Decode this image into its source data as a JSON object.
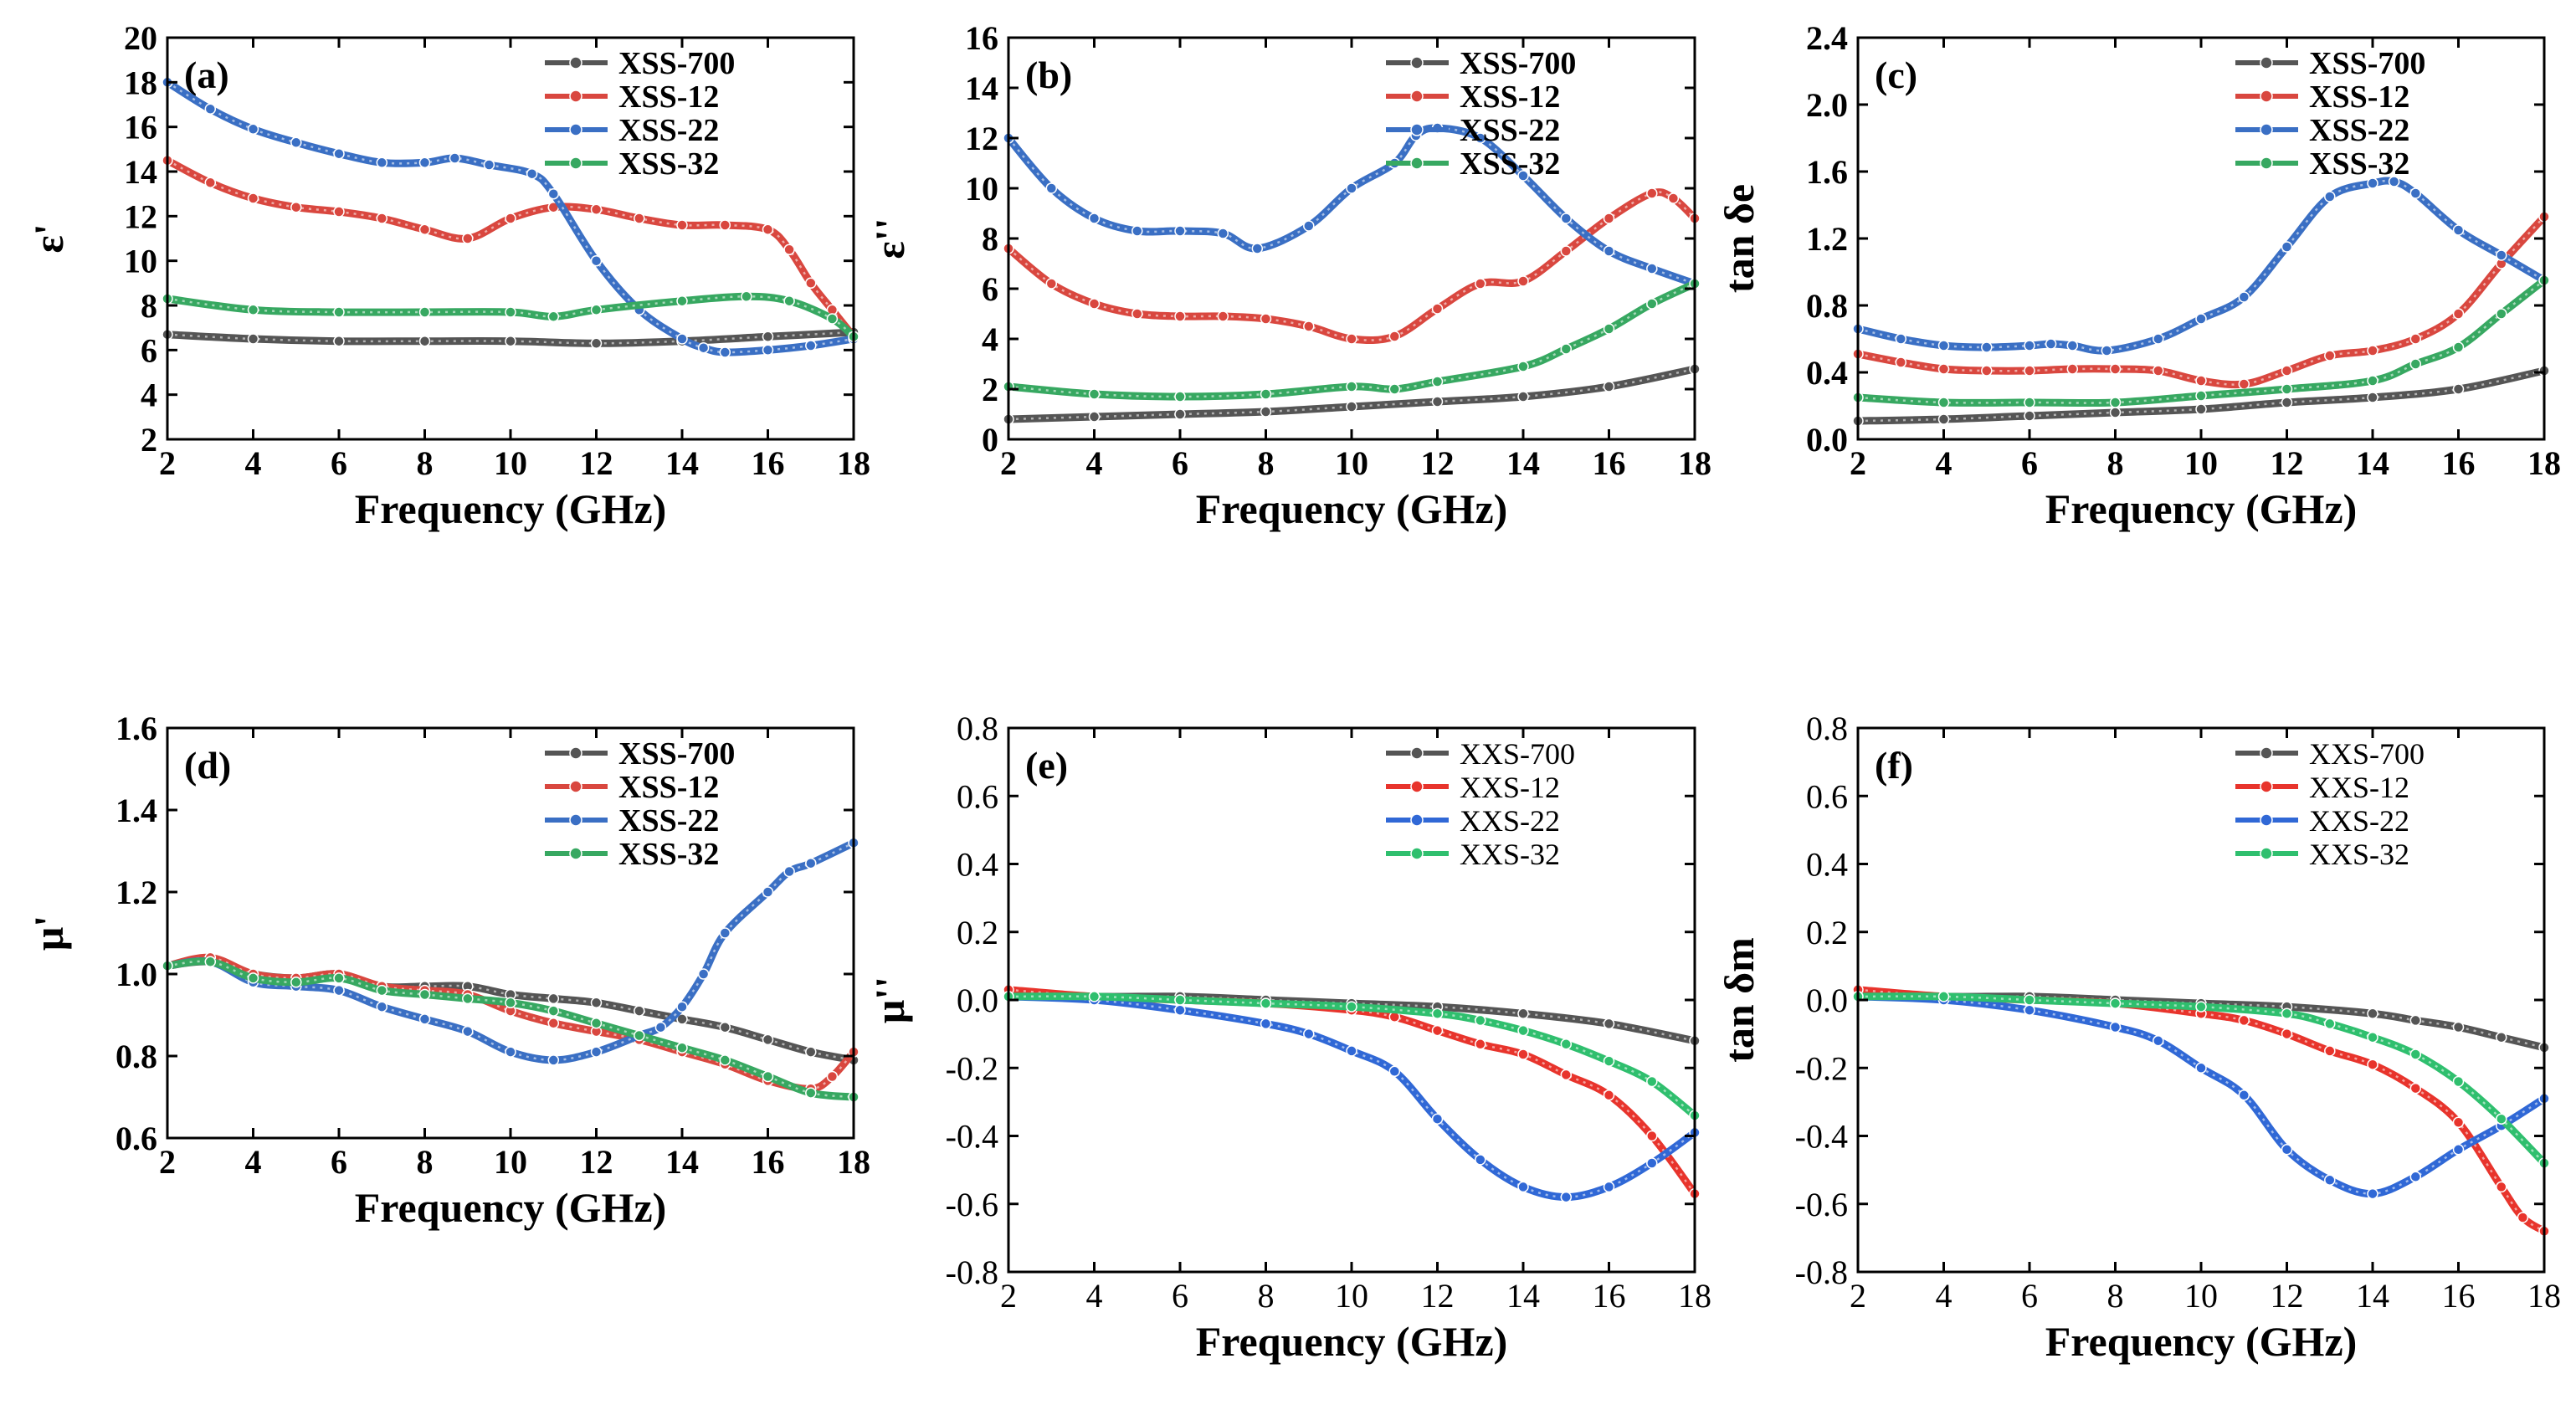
{
  "colors": {
    "XSS-700": "#555555",
    "XSS-12": "#d9473f",
    "XSS-22": "#3a6fc4",
    "XSS-32": "#37a861",
    "XXS-700": "#555555",
    "XXS-12": "#e8342c",
    "XXS-22": "#3068d6",
    "XXS-32": "#2fbf6e"
  },
  "chart_data": [
    {
      "panel": "(a)",
      "type": "line",
      "xlabel": "Frequency (GHz)",
      "ylabel": "ε'",
      "xlim": [
        2,
        18
      ],
      "ylim": [
        2,
        20
      ],
      "xticks": [
        "2",
        "4",
        "6",
        "8",
        "10",
        "12",
        "14",
        "16",
        "18"
      ],
      "yticks": [
        "2",
        "4",
        "6",
        "8",
        "10",
        "12",
        "14",
        "16",
        "18",
        "20"
      ],
      "legend": "top-right",
      "series": [
        {
          "name": "XSS-700",
          "x": [
            2,
            4,
            6,
            8,
            10,
            12,
            14,
            16,
            18
          ],
          "y": [
            6.7,
            6.5,
            6.4,
            6.4,
            6.4,
            6.3,
            6.4,
            6.6,
            6.8
          ]
        },
        {
          "name": "XSS-12",
          "x": [
            2,
            3,
            4,
            5,
            6,
            7,
            8,
            9,
            10,
            11,
            12,
            13,
            14,
            15,
            16,
            16.5,
            17,
            17.5,
            18
          ],
          "y": [
            14.5,
            13.5,
            12.8,
            12.4,
            12.2,
            11.9,
            11.4,
            11.0,
            11.9,
            12.4,
            12.3,
            11.9,
            11.6,
            11.6,
            11.4,
            10.5,
            9.0,
            7.8,
            6.6
          ]
        },
        {
          "name": "XSS-22",
          "x": [
            2,
            3,
            4,
            5,
            6,
            7,
            8,
            8.7,
            9.5,
            10.5,
            11,
            12,
            13,
            14,
            14.5,
            15,
            16,
            17,
            18
          ],
          "y": [
            18.0,
            16.8,
            15.9,
            15.3,
            14.8,
            14.4,
            14.4,
            14.6,
            14.3,
            13.9,
            13.0,
            10.0,
            7.8,
            6.5,
            6.1,
            5.9,
            6.0,
            6.2,
            6.5
          ]
        },
        {
          "name": "XSS-32",
          "x": [
            2,
            4,
            6,
            8,
            10,
            11,
            12,
            14,
            15.5,
            16.5,
            17.5,
            18
          ],
          "y": [
            8.3,
            7.8,
            7.7,
            7.7,
            7.7,
            7.5,
            7.8,
            8.2,
            8.4,
            8.2,
            7.4,
            6.6
          ]
        }
      ]
    },
    {
      "panel": "(b)",
      "type": "line",
      "xlabel": "Frequency (GHz)",
      "ylabel": "ε''",
      "xlim": [
        2,
        18
      ],
      "ylim": [
        0,
        16
      ],
      "xticks": [
        "2",
        "4",
        "6",
        "8",
        "10",
        "12",
        "14",
        "16",
        "18"
      ],
      "yticks": [
        "0",
        "2",
        "4",
        "6",
        "8",
        "10",
        "12",
        "14",
        "16"
      ],
      "legend": "top-right",
      "series": [
        {
          "name": "XSS-700",
          "x": [
            2,
            4,
            6,
            8,
            10,
            12,
            14,
            16,
            18
          ],
          "y": [
            0.8,
            0.9,
            1.0,
            1.1,
            1.3,
            1.5,
            1.7,
            2.1,
            2.8
          ]
        },
        {
          "name": "XSS-12",
          "x": [
            2,
            3,
            4,
            5,
            6,
            7,
            8,
            9,
            10,
            11,
            12,
            13,
            14,
            15,
            16,
            17,
            17.5,
            18
          ],
          "y": [
            7.6,
            6.2,
            5.4,
            5.0,
            4.9,
            4.9,
            4.8,
            4.5,
            4.0,
            4.1,
            5.2,
            6.2,
            6.3,
            7.5,
            8.8,
            9.8,
            9.6,
            8.8
          ]
        },
        {
          "name": "XSS-22",
          "x": [
            2,
            3,
            4,
            5,
            6,
            7,
            7.8,
            9,
            10,
            11,
            11.5,
            12,
            13,
            14,
            15,
            16,
            17,
            18
          ],
          "y": [
            12.0,
            10.0,
            8.8,
            8.3,
            8.3,
            8.2,
            7.6,
            8.5,
            10.0,
            11.0,
            12.1,
            12.4,
            12.0,
            10.5,
            8.8,
            7.5,
            6.8,
            6.2
          ]
        },
        {
          "name": "XSS-32",
          "x": [
            2,
            4,
            6,
            8,
            10,
            11,
            12,
            14,
            15,
            16,
            17,
            18
          ],
          "y": [
            2.1,
            1.8,
            1.7,
            1.8,
            2.1,
            2.0,
            2.3,
            2.9,
            3.6,
            4.4,
            5.4,
            6.2
          ]
        }
      ]
    },
    {
      "panel": "(c)",
      "type": "line",
      "xlabel": "Frequency (GHz)",
      "ylabel": "tan δe",
      "xlim": [
        2,
        18
      ],
      "ylim": [
        0.0,
        2.4
      ],
      "xticks": [
        "2",
        "4",
        "6",
        "8",
        "10",
        "12",
        "14",
        "16",
        "18"
      ],
      "yticks": [
        "0.0",
        "0.4",
        "0.8",
        "1.2",
        "1.6",
        "2.0",
        "2.4"
      ],
      "legend": "top-right",
      "series": [
        {
          "name": "XSS-700",
          "x": [
            2,
            4,
            6,
            8,
            10,
            12,
            14,
            16,
            18
          ],
          "y": [
            0.11,
            0.12,
            0.14,
            0.16,
            0.18,
            0.22,
            0.25,
            0.3,
            0.41
          ]
        },
        {
          "name": "XSS-12",
          "x": [
            2,
            3,
            4,
            5,
            6,
            7,
            8,
            9,
            10,
            11,
            12,
            13,
            14,
            15,
            16,
            17,
            18
          ],
          "y": [
            0.51,
            0.46,
            0.42,
            0.41,
            0.41,
            0.42,
            0.42,
            0.41,
            0.35,
            0.33,
            0.41,
            0.5,
            0.53,
            0.6,
            0.75,
            1.05,
            1.33
          ]
        },
        {
          "name": "XSS-22",
          "x": [
            2,
            3,
            4,
            5,
            6,
            6.5,
            7,
            7.8,
            9,
            10,
            11,
            12,
            13,
            14,
            14.5,
            15,
            16,
            17,
            18
          ],
          "y": [
            0.66,
            0.6,
            0.56,
            0.55,
            0.56,
            0.57,
            0.56,
            0.53,
            0.6,
            0.72,
            0.85,
            1.15,
            1.45,
            1.53,
            1.54,
            1.47,
            1.25,
            1.1,
            0.95
          ]
        },
        {
          "name": "XSS-32",
          "x": [
            2,
            4,
            6,
            8,
            10,
            12,
            14,
            15,
            16,
            17,
            18
          ],
          "y": [
            0.25,
            0.22,
            0.22,
            0.22,
            0.26,
            0.3,
            0.35,
            0.45,
            0.55,
            0.75,
            0.95
          ]
        }
      ]
    },
    {
      "panel": "(d)",
      "type": "line",
      "xlabel": "Frequency (GHz)",
      "ylabel": "μ'",
      "xlim": [
        2,
        18
      ],
      "ylim": [
        0.6,
        1.6
      ],
      "xticks": [
        "2",
        "4",
        "6",
        "8",
        "10",
        "12",
        "14",
        "16",
        "18"
      ],
      "yticks": [
        "0.6",
        "0.8",
        "1.0",
        "1.2",
        "1.4",
        "1.6"
      ],
      "legend": "top-right",
      "series": [
        {
          "name": "XSS-700",
          "x": [
            2,
            3,
            4,
            5,
            6,
            7,
            8,
            9,
            10,
            11,
            12,
            13,
            14,
            15,
            16,
            17,
            18
          ],
          "y": [
            1.02,
            1.03,
            1.0,
            0.99,
            1.0,
            0.97,
            0.97,
            0.97,
            0.95,
            0.94,
            0.93,
            0.91,
            0.89,
            0.87,
            0.84,
            0.81,
            0.79
          ]
        },
        {
          "name": "XSS-12",
          "x": [
            2,
            3,
            4,
            5,
            6,
            7,
            8,
            9,
            10,
            11,
            12,
            13,
            14,
            15,
            16,
            17,
            17.5,
            18
          ],
          "y": [
            1.02,
            1.04,
            1.0,
            0.99,
            1.0,
            0.97,
            0.96,
            0.95,
            0.91,
            0.88,
            0.86,
            0.84,
            0.81,
            0.78,
            0.74,
            0.72,
            0.75,
            0.81
          ]
        },
        {
          "name": "XSS-22",
          "x": [
            2,
            3,
            4,
            5,
            6,
            7,
            8,
            9,
            10,
            11,
            12,
            13,
            13.5,
            14,
            14.5,
            15,
            16,
            16.5,
            17,
            18
          ],
          "y": [
            1.02,
            1.03,
            0.98,
            0.97,
            0.96,
            0.92,
            0.89,
            0.86,
            0.81,
            0.79,
            0.81,
            0.85,
            0.87,
            0.92,
            1.0,
            1.1,
            1.2,
            1.25,
            1.27,
            1.32
          ]
        },
        {
          "name": "XSS-32",
          "x": [
            2,
            3,
            4,
            5,
            6,
            7,
            8,
            9,
            10,
            11,
            12,
            13,
            14,
            15,
            16,
            17,
            18
          ],
          "y": [
            1.02,
            1.03,
            0.99,
            0.98,
            0.99,
            0.96,
            0.95,
            0.94,
            0.93,
            0.91,
            0.88,
            0.85,
            0.82,
            0.79,
            0.75,
            0.71,
            0.7
          ]
        }
      ]
    },
    {
      "panel": "(e)",
      "type": "line",
      "xlabel": "Frequency (GHz)",
      "ylabel": "μ''",
      "xlim": [
        2,
        18
      ],
      "ylim": [
        -0.8,
        0.8
      ],
      "xticks": [
        "2",
        "4",
        "6",
        "8",
        "10",
        "12",
        "14",
        "16",
        "18"
      ],
      "yticks": [
        "-0.8",
        "-0.6",
        "-0.4",
        "-0.2",
        "0.0",
        "0.2",
        "0.4",
        "0.6",
        "0.8"
      ],
      "legend": "top-right",
      "series": [
        {
          "name": "XXS-700",
          "x": [
            2,
            4,
            6,
            8,
            10,
            12,
            14,
            16,
            18
          ],
          "y": [
            0.02,
            0.01,
            0.01,
            0.0,
            -0.01,
            -0.02,
            -0.04,
            -0.07,
            -0.12
          ]
        },
        {
          "name": "XXS-12",
          "x": [
            2,
            4,
            6,
            8,
            10,
            11,
            12,
            13,
            14,
            15,
            16,
            17,
            18
          ],
          "y": [
            0.03,
            0.01,
            0.0,
            -0.01,
            -0.03,
            -0.05,
            -0.09,
            -0.13,
            -0.16,
            -0.22,
            -0.28,
            -0.4,
            -0.57
          ]
        },
        {
          "name": "XXS-22",
          "x": [
            2,
            4,
            6,
            8,
            9,
            10,
            11,
            12,
            13,
            14,
            15,
            16,
            17,
            18
          ],
          "y": [
            0.01,
            0.0,
            -0.03,
            -0.07,
            -0.1,
            -0.15,
            -0.21,
            -0.35,
            -0.47,
            -0.55,
            -0.58,
            -0.55,
            -0.48,
            -0.39
          ]
        },
        {
          "name": "XXS-32",
          "x": [
            2,
            4,
            6,
            8,
            10,
            12,
            13,
            14,
            15,
            16,
            17,
            18
          ],
          "y": [
            0.01,
            0.01,
            0.0,
            -0.01,
            -0.02,
            -0.04,
            -0.06,
            -0.09,
            -0.13,
            -0.18,
            -0.24,
            -0.34
          ]
        }
      ]
    },
    {
      "panel": "(f)",
      "type": "line",
      "xlabel": "Frequency (GHz)",
      "ylabel": "tan δm",
      "xlim": [
        2,
        18
      ],
      "ylim": [
        -0.8,
        0.8
      ],
      "xticks": [
        "2",
        "4",
        "6",
        "8",
        "10",
        "12",
        "14",
        "16",
        "18"
      ],
      "yticks": [
        "-0.8",
        "-0.6",
        "-0.4",
        "-0.2",
        "0.0",
        "0.2",
        "0.4",
        "0.6",
        "0.8"
      ],
      "legend": "top-right",
      "series": [
        {
          "name": "XXS-700",
          "x": [
            2,
            4,
            6,
            8,
            10,
            12,
            14,
            15,
            16,
            17,
            18
          ],
          "y": [
            0.02,
            0.01,
            0.01,
            0.0,
            -0.01,
            -0.02,
            -0.04,
            -0.06,
            -0.08,
            -0.11,
            -0.14
          ]
        },
        {
          "name": "XXS-12",
          "x": [
            2,
            4,
            6,
            8,
            10,
            11,
            12,
            13,
            14,
            15,
            16,
            17,
            17.5,
            18
          ],
          "y": [
            0.03,
            0.01,
            0.0,
            -0.01,
            -0.04,
            -0.06,
            -0.1,
            -0.15,
            -0.19,
            -0.26,
            -0.36,
            -0.55,
            -0.64,
            -0.68
          ]
        },
        {
          "name": "XXS-22",
          "x": [
            2,
            4,
            6,
            8,
            9,
            10,
            11,
            12,
            13,
            14,
            15,
            16,
            17,
            18
          ],
          "y": [
            0.01,
            0.0,
            -0.03,
            -0.08,
            -0.12,
            -0.2,
            -0.28,
            -0.44,
            -0.53,
            -0.57,
            -0.52,
            -0.44,
            -0.37,
            -0.29
          ]
        },
        {
          "name": "XXS-32",
          "x": [
            2,
            4,
            6,
            8,
            10,
            12,
            13,
            14,
            15,
            16,
            17,
            18
          ],
          "y": [
            0.01,
            0.01,
            0.0,
            -0.01,
            -0.02,
            -0.04,
            -0.07,
            -0.11,
            -0.16,
            -0.24,
            -0.35,
            -0.48
          ]
        }
      ]
    }
  ]
}
